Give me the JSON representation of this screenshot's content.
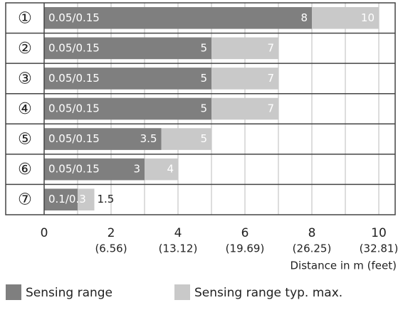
{
  "chart_data": {
    "type": "overlap-bar",
    "categories": [
      "①",
      "②",
      "③",
      "④",
      "⑤",
      "⑥",
      "⑦"
    ],
    "range_labels": [
      "0.05/0.15",
      "0.05/0.15",
      "0.05/0.15",
      "0.05/0.15",
      "0.05/0.15",
      "0.05/0.15",
      "0.1/0.3"
    ],
    "series": [
      {
        "name": "Sensing range",
        "color": "#7f7f7f",
        "values": [
          8,
          5,
          5,
          5,
          3.5,
          3,
          1
        ],
        "value_labels": [
          "8",
          "5",
          "5",
          "5",
          "3.5",
          "3",
          null
        ]
      },
      {
        "name": "Sensing range typ. max.",
        "color": "#c9c9c9",
        "values": [
          10,
          7,
          7,
          7,
          5,
          4,
          1.5
        ]
      }
    ],
    "xlim": [
      0,
      10
    ],
    "xticks": [
      0,
      2,
      4,
      6,
      8,
      10
    ],
    "xtick_feet": [
      null,
      "(6.56)",
      "(13.12)",
      "(19.69)",
      "(26.25)",
      "(32.81)"
    ],
    "xgrid": [
      0,
      1,
      2,
      3,
      4,
      5,
      6,
      7,
      8,
      9,
      10
    ],
    "xlabel": "Distance in m (feet)"
  }
}
